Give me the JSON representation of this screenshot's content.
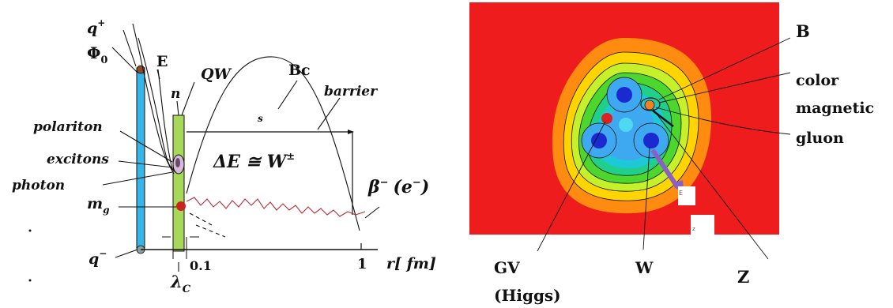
{
  "left_diagram": {
    "labels": {
      "q_plus": "q",
      "q_plus_sup": "+",
      "q_minus": "q",
      "q_minus_sup": "−",
      "phi": "Φ",
      "phi_sub": "0",
      "E": "E",
      "QW": "QW",
      "n": "n",
      "Bc": "Bc",
      "barrier": "barrier",
      "s": "s",
      "polariton": "polariton",
      "excitons": "excitons",
      "photon": "photon",
      "m": "m",
      "m_sub": "g",
      "delta_E": "ΔE ≅ W",
      "delta_E_sup": "±",
      "beta": "β",
      "beta_sup": "−",
      "beta_paren": "(e",
      "beta_paren_sup": "−",
      "beta_close": ")",
      "tick_01": "0.1",
      "tick_1": "1",
      "r_axis": "r[ fm]",
      "lambda": "λ",
      "lambda_sub": "C"
    },
    "colors": {
      "phi_bar": "#35b6e6",
      "qw_bar": "#a8d85a",
      "dot": "#cc2222",
      "noise_line": "#b0303a"
    }
  },
  "right_diagram": {
    "labels": {
      "B": "B",
      "color": "color",
      "magnetic": "magnetic",
      "gluon": "gluon",
      "GV": "GV",
      "Higgs": "(Higgs)",
      "W": "W",
      "Z": "Z"
    },
    "colors": {
      "background": "#ee1c1c",
      "contours": [
        "#ff8c10",
        "#ffd400",
        "#c6f02a",
        "#4cd62e",
        "#1fcf8a",
        "#1fc8d6",
        "#3ea8f0",
        "#4a7cf5"
      ],
      "blue_core": "#1a2ad0",
      "red_dot": "#dd2020",
      "arrow": "#8a60c8"
    }
  }
}
